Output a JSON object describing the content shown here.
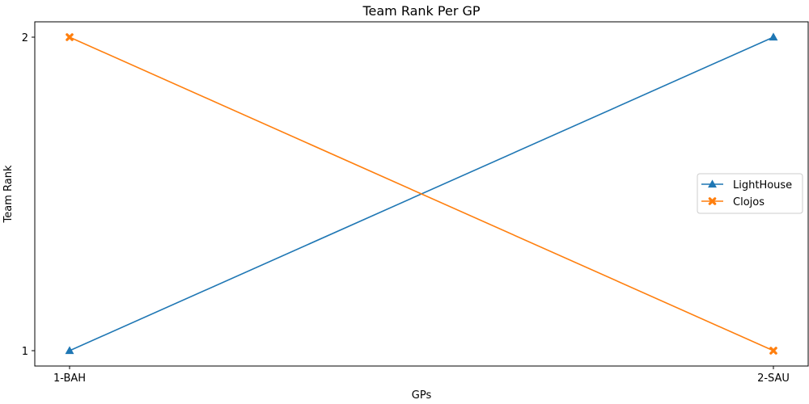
{
  "chart_data": {
    "type": "line",
    "title": "Team Rank Per GP",
    "xlabel": "GPs",
    "ylabel": "Team Rank",
    "categories": [
      "1-BAH",
      "2-SAU"
    ],
    "ylim": [
      1,
      2
    ],
    "yticks": [
      1,
      2
    ],
    "grid": false,
    "legend_position": "right",
    "series": [
      {
        "name": "LightHouse",
        "values": [
          1,
          2
        ],
        "color": "#1f77b4",
        "marker": "triangle-up"
      },
      {
        "name": "Clojos",
        "values": [
          2,
          1
        ],
        "color": "#ff7f0e",
        "marker": "x-filled"
      }
    ]
  }
}
